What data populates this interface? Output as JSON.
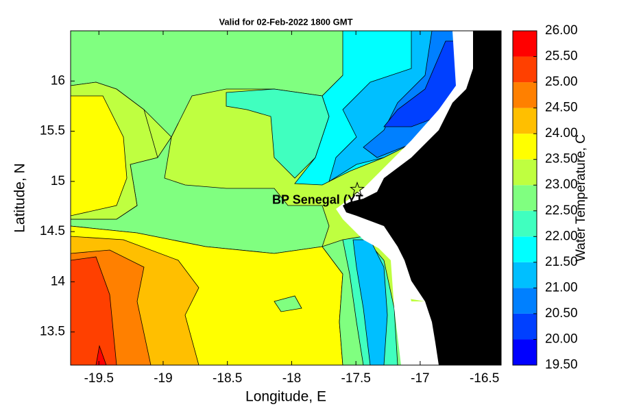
{
  "chart_data": {
    "type": "contour",
    "title": "Valid for 02-Feb-2022 1800 GMT",
    "xlabel": "Longitude, E",
    "ylabel": "Latitude, N",
    "xlim": [
      -19.72,
      -16.37
    ],
    "ylim": [
      13.17,
      16.5
    ],
    "xticks": [
      -19.5,
      -19,
      -18.5,
      -18,
      -17.5,
      -17,
      -16.5
    ],
    "yticks": [
      13.5,
      14,
      14.5,
      15,
      15.5,
      16
    ],
    "colorbar": {
      "label": "Water Temperature, C",
      "lim": [
        19.5,
        26
      ],
      "ticks": [
        {
          "value": 19.5,
          "label": "19.50"
        },
        {
          "value": 20,
          "label": "20.00"
        },
        {
          "value": 20.5,
          "label": "20.50"
        },
        {
          "value": 21,
          "label": "21.00"
        },
        {
          "value": 21.5,
          "label": "21.50"
        },
        {
          "value": 22,
          "label": "22.00"
        },
        {
          "value": 22.5,
          "label": "22.50"
        },
        {
          "value": 23,
          "label": "23.00"
        },
        {
          "value": 23.5,
          "label": "23.50"
        },
        {
          "value": 24,
          "label": "24.00"
        },
        {
          "value": 24.5,
          "label": "24.50"
        },
        {
          "value": 25,
          "label": "25.00"
        },
        {
          "value": 25.5,
          "label": "25.50"
        },
        {
          "value": 26,
          "label": "26.00"
        }
      ],
      "colors": [
        "#0000ff",
        "#0040ff",
        "#0080ff",
        "#00bfff",
        "#00ffff",
        "#40ffbf",
        "#80ff80",
        "#bfff40",
        "#ffff00",
        "#ffbf00",
        "#ff8000",
        "#ff4000",
        "#ff0000"
      ]
    },
    "station": {
      "name": "BP Senegal (YT",
      "x": -17.49,
      "y": 14.92
    }
  }
}
